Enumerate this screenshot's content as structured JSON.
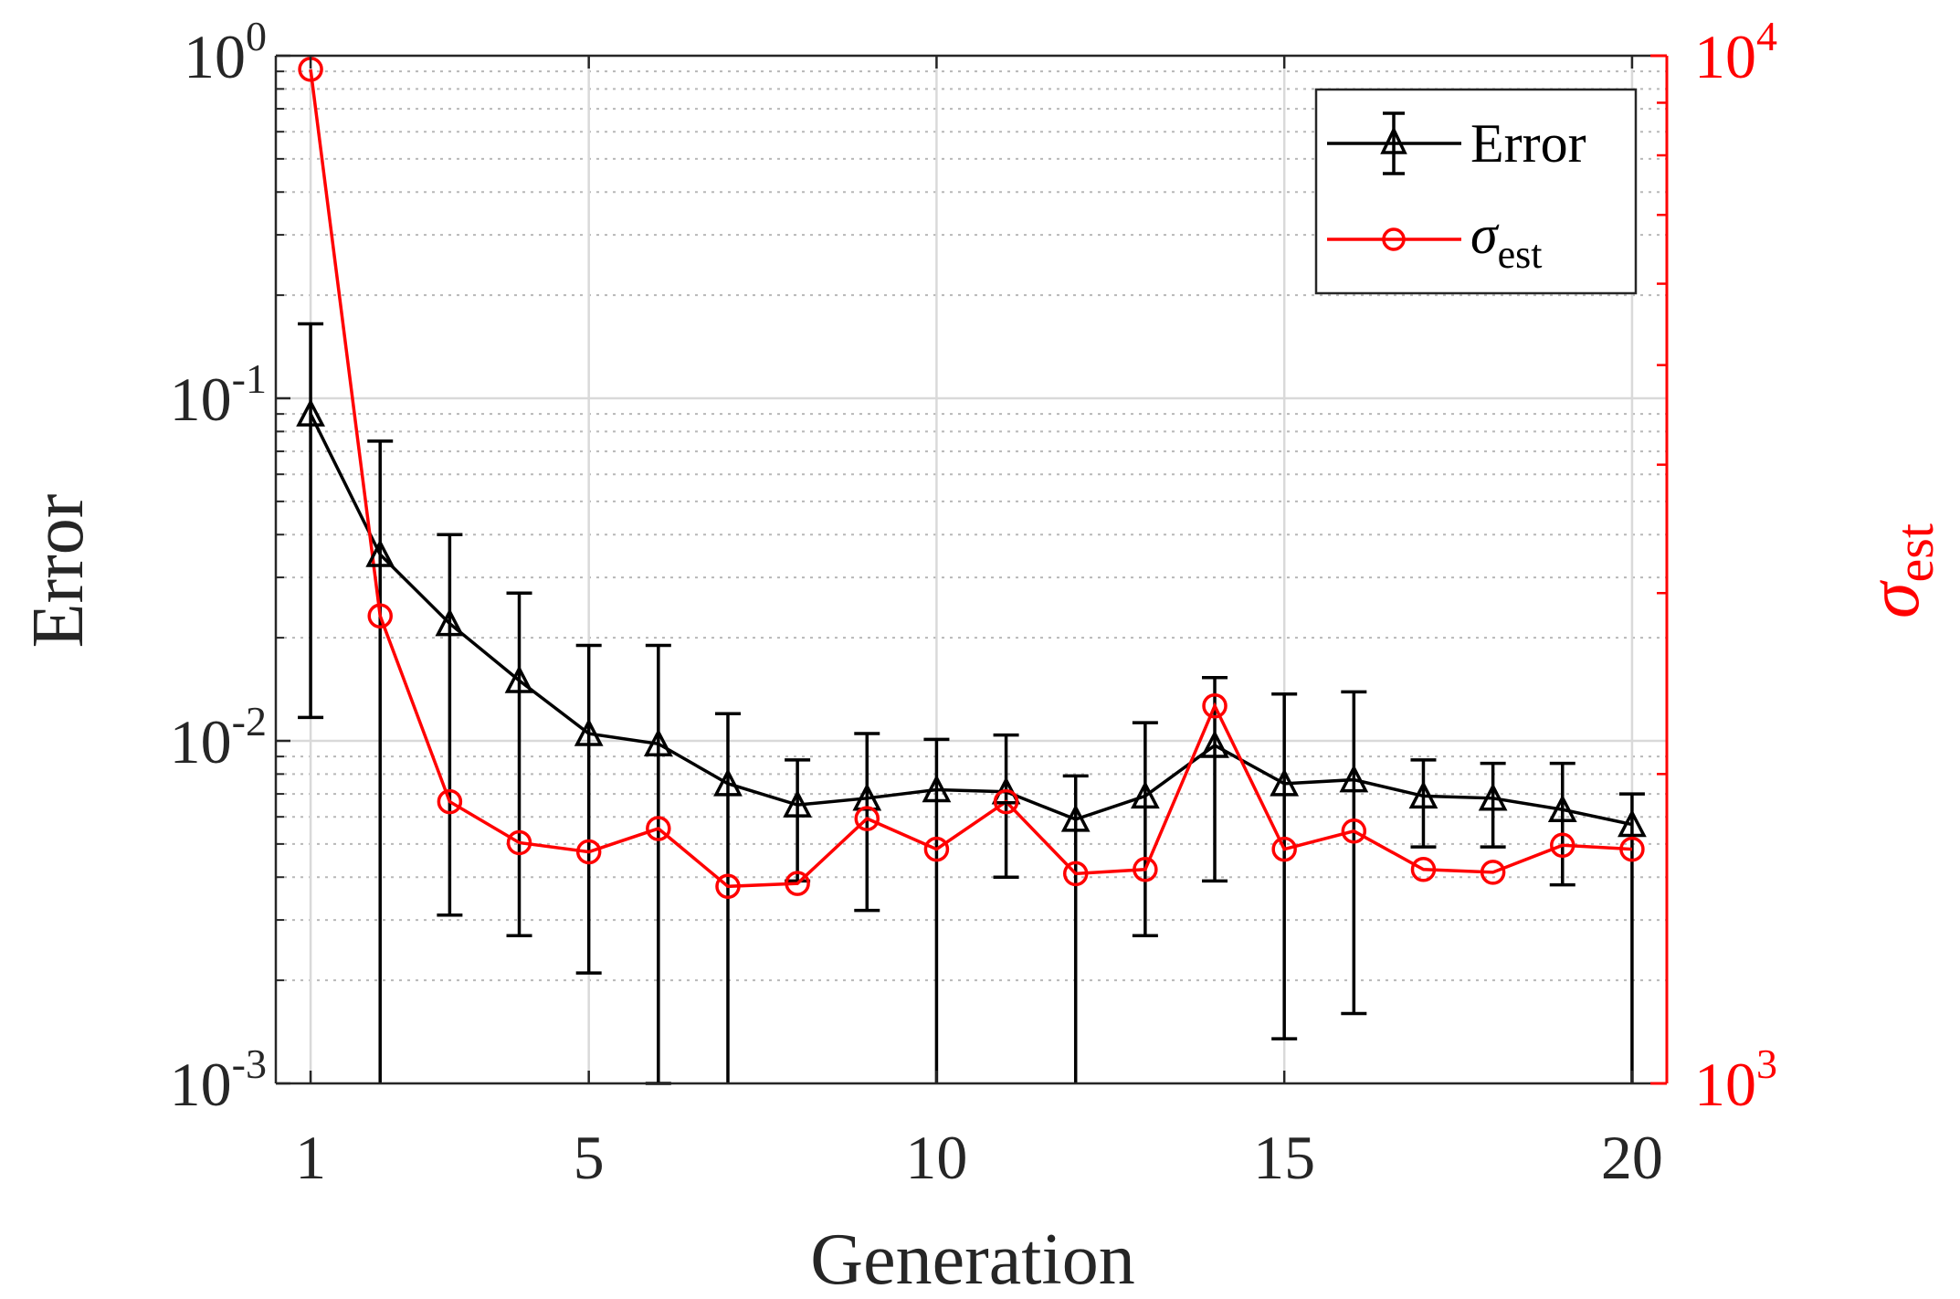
{
  "chart_data": {
    "type": "line",
    "xlabel": "Generation",
    "ylabel_left": "Error",
    "ylabel_right": {
      "base": "σ",
      "sub": "est"
    },
    "x": [
      1,
      2,
      3,
      4,
      5,
      6,
      7,
      8,
      9,
      10,
      11,
      12,
      13,
      14,
      15,
      16,
      17,
      18,
      19,
      20
    ],
    "xlim": [
      0.5,
      20.5
    ],
    "xticks": [
      1,
      5,
      10,
      15,
      20
    ],
    "left_axis": {
      "scale": "log",
      "ylim": [
        0.001,
        1
      ],
      "ticks": [
        {
          "base": "10",
          "exp": "0",
          "value": 1
        },
        {
          "base": "10",
          "exp": "-1",
          "value": 0.1
        },
        {
          "base": "10",
          "exp": "-2",
          "value": 0.01
        },
        {
          "base": "10",
          "exp": "-3",
          "value": 0.001
        }
      ]
    },
    "right_axis": {
      "scale": "log",
      "ylim": [
        1000,
        10000
      ],
      "color": "#ff0000",
      "ticks": [
        {
          "base": "10",
          "exp": "4",
          "value": 10000
        },
        {
          "base": "10",
          "exp": "3",
          "value": 1000
        }
      ]
    },
    "grid": true,
    "legend_position": "top-right",
    "series": [
      {
        "name": "Error",
        "axis": "left",
        "color": "#000000",
        "marker": "triangle",
        "values": [
          0.09,
          0.035,
          0.022,
          0.015,
          0.0105,
          0.0098,
          0.0075,
          0.0065,
          0.0068,
          0.0072,
          0.0071,
          0.0059,
          0.0069,
          0.0097,
          0.0075,
          0.0077,
          0.0069,
          0.0068,
          0.0063,
          0.0057
        ],
        "err_upper": [
          0.165,
          0.075,
          0.04,
          0.027,
          0.019,
          0.019,
          0.012,
          0.0088,
          0.0105,
          0.0101,
          0.0104,
          0.0079,
          0.0113,
          0.0153,
          0.0137,
          0.0139,
          0.0088,
          0.0086,
          0.0086,
          0.007
        ],
        "err_lower": [
          0.0117,
          0.0,
          0.0031,
          0.0027,
          0.0021,
          0.001,
          0.0,
          0.0039,
          0.0032,
          0.0,
          0.004,
          0.0,
          0.0027,
          0.0039,
          0.00135,
          0.0016,
          0.0049,
          0.0049,
          0.0038,
          0.0
        ],
        "legend_label": "Error"
      },
      {
        "name": "σest",
        "axis": "right",
        "color": "#ff0000",
        "marker": "circle",
        "values": [
          9700,
          2850,
          1880,
          1715,
          1680,
          1770,
          1555,
          1565,
          1810,
          1690,
          1880,
          1600,
          1615,
          2330,
          1690,
          1760,
          1615,
          1605,
          1705,
          1690
        ],
        "legend_label": {
          "base": "σ",
          "sub": "est"
        }
      }
    ]
  }
}
